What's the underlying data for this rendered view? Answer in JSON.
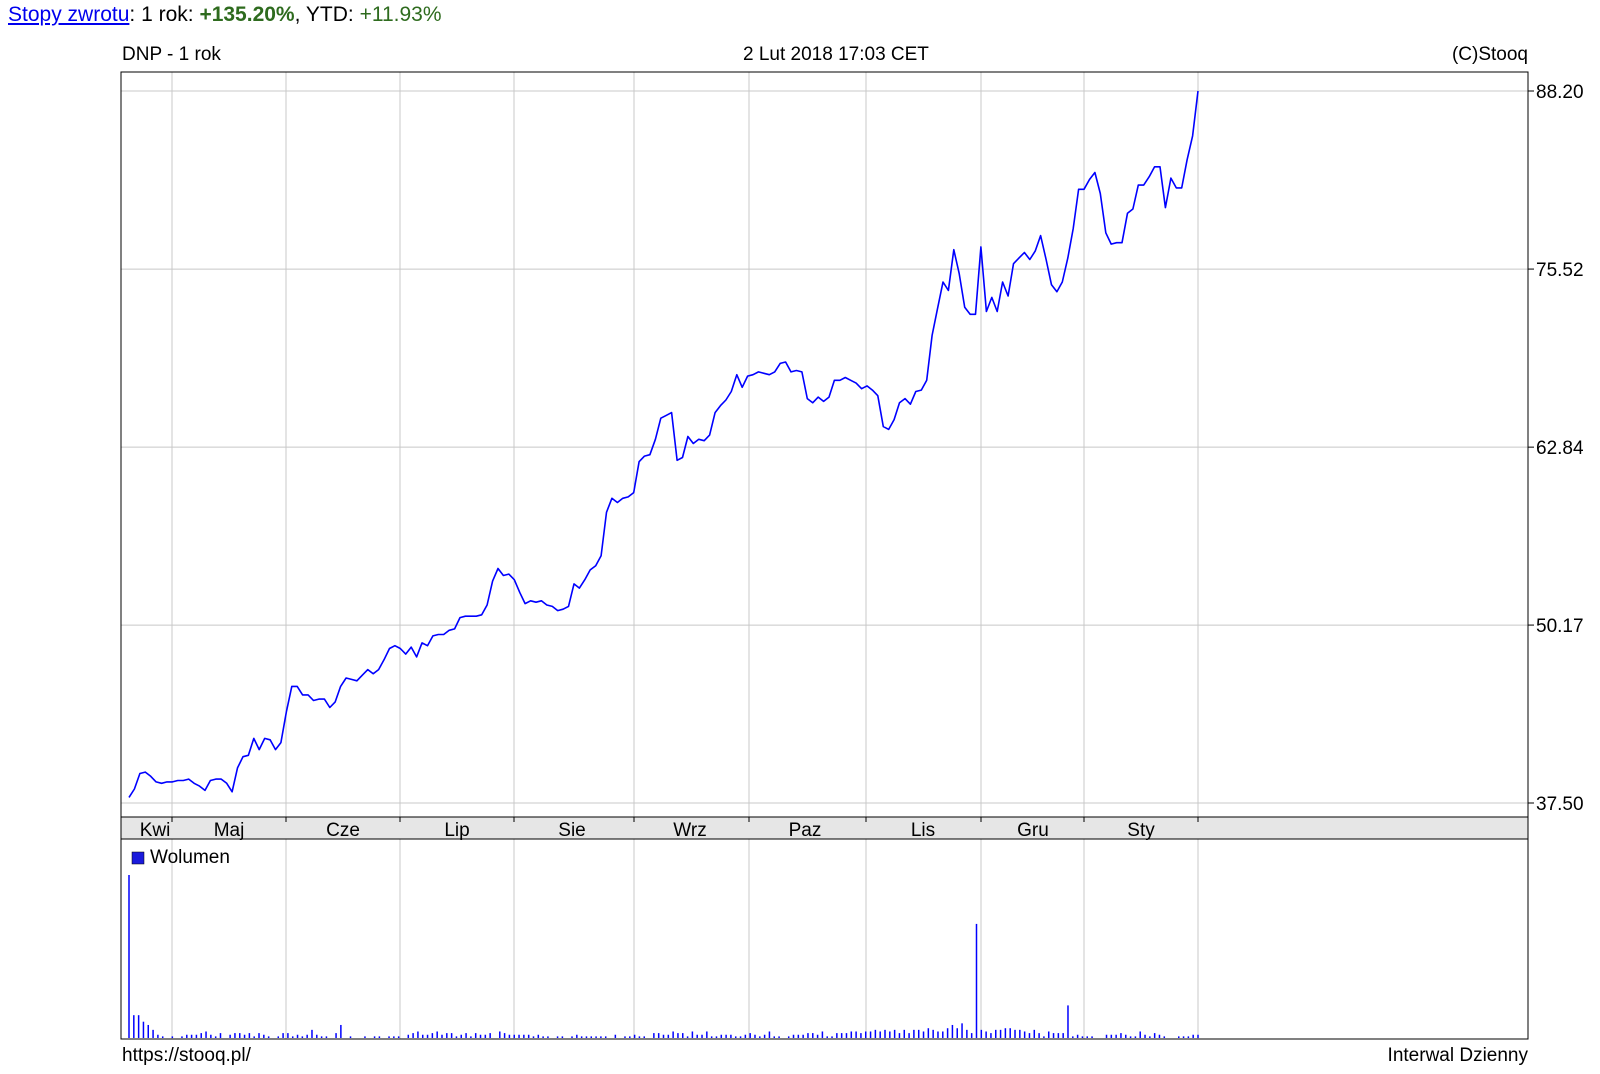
{
  "returns": {
    "link_label": "Stopy zwrotu",
    "period_label": "1 rok:",
    "period_value": "+135.20%",
    "ytd_label": "YTD:",
    "ytd_value": "+11.93%"
  },
  "header": {
    "left": "DNP - 1 rok",
    "center": "2 Lut 2018 17:03 CET",
    "right": "(C)Stooq"
  },
  "footer": {
    "left": "https://stooq.pl/",
    "right": "Interwal Dzienny"
  },
  "colors": {
    "line": "#0000ff",
    "grid": "#c8c8c8",
    "positive": "#2e6b1e",
    "link": "#0000ee"
  },
  "chart_data": [
    {
      "type": "line",
      "title": "DNP - 1 rok",
      "y_ticks": [
        "88.20",
        "75.52",
        "62.84",
        "50.17",
        "37.50"
      ],
      "ylim": [
        37.5,
        88.2
      ],
      "months": [
        "Kwi",
        "Maj",
        "Cze",
        "Lip",
        "Sie",
        "Wrz",
        "Paz",
        "Lis",
        "Gru",
        "Sty"
      ],
      "grid": true,
      "series": [
        {
          "values": [
            37.9,
            38.5,
            39.6,
            39.7,
            39.4,
            39.0,
            38.9,
            39.0,
            39.0,
            39.1,
            39.1,
            39.2,
            38.9,
            38.7,
            38.4,
            39.1,
            39.2,
            39.2,
            38.9,
            38.3,
            40.0,
            40.8,
            40.9,
            42.1,
            41.3,
            42.1,
            42.0,
            41.3,
            41.8,
            44.0,
            45.8,
            45.8,
            45.2,
            45.2,
            44.8,
            44.9,
            44.9,
            44.3,
            44.7,
            45.8,
            46.4,
            46.3,
            46.2,
            46.6,
            47.0,
            46.7,
            47.0,
            47.7,
            48.5,
            48.7,
            48.5,
            48.1,
            48.6,
            47.9,
            48.9,
            48.7,
            49.4,
            49.5,
            49.5,
            49.8,
            49.9,
            50.7,
            50.8,
            50.8,
            50.8,
            50.9,
            51.6,
            53.3,
            54.2,
            53.7,
            53.8,
            53.4,
            52.5,
            51.7,
            51.9,
            51.8,
            51.9,
            51.6,
            51.5,
            51.2,
            51.3,
            51.5,
            53.1,
            52.8,
            53.4,
            54.1,
            54.4,
            55.1,
            58.2,
            59.2,
            58.9,
            59.2,
            59.3,
            59.6,
            61.8,
            62.2,
            62.3,
            63.4,
            64.9,
            65.1,
            65.3,
            61.9,
            62.1,
            63.6,
            63.1,
            63.4,
            63.3,
            63.7,
            65.3,
            65.8,
            66.2,
            66.8,
            68.0,
            67.1,
            67.9,
            68.0,
            68.2,
            68.1,
            68.0,
            68.2,
            68.8,
            68.9,
            68.2,
            68.3,
            68.2,
            66.3,
            66.0,
            66.4,
            66.1,
            66.4,
            67.6,
            67.6,
            67.8,
            67.6,
            67.4,
            67.0,
            67.2,
            66.9,
            66.5,
            64.3,
            64.1,
            64.8,
            66.0,
            66.3,
            65.9,
            66.8,
            66.9,
            67.6,
            70.8,
            72.7,
            74.6,
            74.0,
            76.9,
            75.2,
            72.8,
            72.3,
            72.3,
            77.1,
            72.5,
            73.5,
            72.5,
            74.6,
            73.6,
            75.9,
            76.3,
            76.7,
            76.2,
            76.8,
            77.9,
            76.2,
            74.4,
            73.9,
            74.6,
            76.3,
            78.4,
            81.2,
            81.2,
            81.9,
            82.4,
            80.9,
            78.1,
            77.3,
            77.4,
            77.4,
            79.5,
            79.8,
            81.5,
            81.5,
            82.1,
            82.8,
            82.8,
            79.9,
            82.0,
            81.3,
            81.3,
            83.3,
            85.0,
            88.2
          ]
        }
      ]
    },
    {
      "type": "bar",
      "title": "",
      "legend": [
        "Wolumen"
      ],
      "legend_color": "#1a1adc",
      "grid": true,
      "values": [
        100,
        14,
        14,
        10,
        8,
        5,
        2,
        1,
        0,
        1,
        0,
        1,
        2,
        2,
        2,
        3,
        4,
        2,
        1,
        3,
        0,
        2,
        3,
        3,
        2,
        3,
        1,
        3,
        2,
        1,
        0,
        1,
        3,
        3,
        1,
        2,
        1,
        2,
        5,
        2,
        1,
        1,
        0,
        3,
        8,
        0,
        1,
        0,
        0,
        1,
        0,
        1,
        1,
        0,
        1,
        1,
        1,
        0,
        2,
        3,
        4,
        2,
        2,
        3,
        4,
        2,
        3,
        3,
        1,
        2,
        3,
        1,
        3,
        2,
        2,
        3,
        0,
        4,
        3,
        2,
        2,
        2,
        2,
        2,
        1,
        2,
        1,
        1,
        0,
        1,
        1,
        0,
        1,
        2,
        1,
        1,
        1,
        1,
        1,
        1,
        0,
        2,
        0,
        1,
        1,
        2,
        1,
        1,
        0,
        3,
        3,
        2,
        2,
        4,
        3,
        3,
        1,
        4,
        2,
        2,
        4,
        1,
        1,
        2,
        2,
        2,
        1,
        1,
        2,
        3,
        2,
        1,
        2,
        4,
        1,
        1,
        0,
        1,
        2,
        2,
        2,
        3,
        3,
        2,
        4,
        1,
        1,
        3,
        3,
        3,
        4,
        4,
        3,
        4,
        4,
        5,
        4,
        5,
        4,
        5,
        3,
        5,
        3,
        5,
        5,
        4,
        6,
        5,
        4,
        4,
        6,
        8,
        6,
        9,
        5,
        3,
        70,
        5,
        4,
        3,
        5,
        5,
        6,
        6,
        5,
        5,
        4,
        3,
        5,
        3,
        1,
        4,
        3,
        3,
        3,
        20,
        1,
        2,
        1,
        1,
        1,
        0,
        0,
        2,
        2,
        2,
        3,
        2,
        1,
        1,
        4,
        2,
        1,
        3,
        2,
        1,
        0,
        0,
        1,
        1,
        1,
        2,
        2
      ]
    }
  ]
}
